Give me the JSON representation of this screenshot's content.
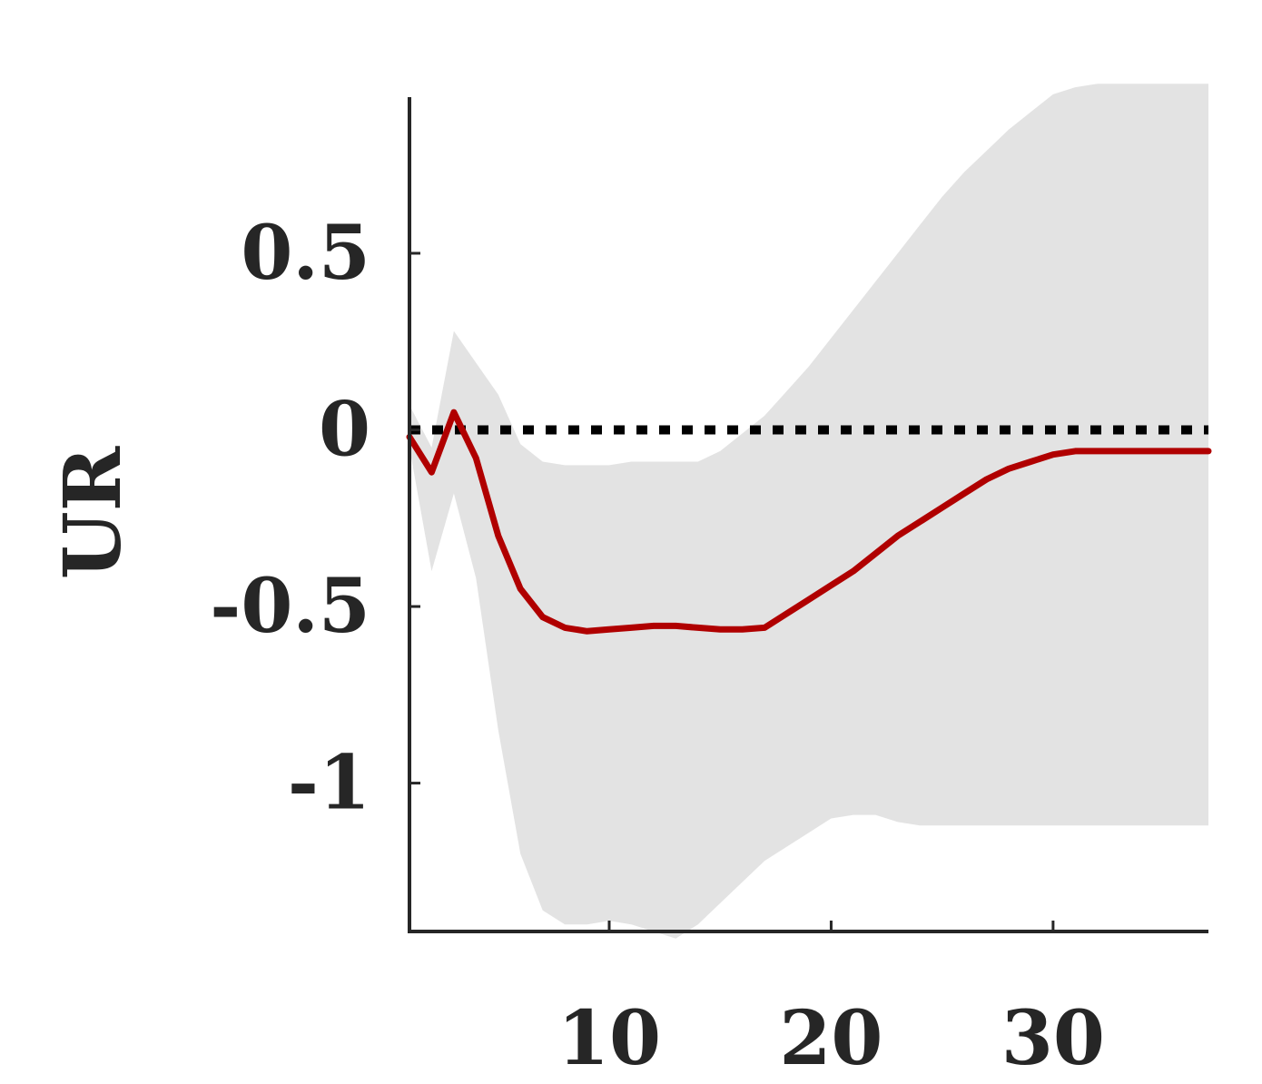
{
  "chart_data": {
    "type": "area",
    "title": "",
    "xlabel": "",
    "ylabel": "UR",
    "xlim": [
      1,
      37
    ],
    "ylim": [
      -1.42,
      0.96
    ],
    "x_ticks": [
      10,
      20,
      30
    ],
    "x_tick_labels": [
      "10",
      "20",
      "30"
    ],
    "y_ticks": [
      0.5,
      0,
      -0.5,
      -1
    ],
    "y_tick_labels": [
      "0.5",
      "0",
      "-0.5",
      "-1"
    ],
    "grid": false,
    "legend": "none",
    "x": [
      1,
      2,
      3,
      4,
      5,
      6,
      7,
      8,
      9,
      10,
      11,
      12,
      13,
      14,
      15,
      16,
      17,
      18,
      19,
      20,
      21,
      22,
      23,
      24,
      25,
      26,
      27,
      28,
      29,
      30,
      31,
      32,
      33,
      34,
      35,
      36,
      37
    ],
    "series": [
      {
        "role": "median",
        "color": "#b00000",
        "values": [
          -0.02,
          -0.12,
          0.05,
          -0.08,
          -0.3,
          -0.45,
          -0.53,
          -0.56,
          -0.57,
          -0.565,
          -0.56,
          -0.555,
          -0.555,
          -0.56,
          -0.565,
          -0.565,
          -0.56,
          -0.52,
          -0.48,
          -0.44,
          -0.4,
          -0.35,
          -0.3,
          -0.26,
          -0.22,
          -0.18,
          -0.14,
          -0.11,
          -0.09,
          -0.07,
          -0.06,
          -0.06,
          -0.06,
          -0.06,
          -0.06,
          -0.06,
          -0.06
        ]
      },
      {
        "role": "upper",
        "color": "#e3e3e3",
        "values": [
          0.07,
          -0.05,
          0.28,
          0.19,
          0.1,
          -0.04,
          -0.09,
          -0.1,
          -0.1,
          -0.1,
          -0.09,
          -0.09,
          -0.09,
          -0.09,
          -0.06,
          -0.01,
          0.04,
          0.11,
          0.18,
          0.26,
          0.34,
          0.42,
          0.5,
          0.58,
          0.66,
          0.73,
          0.79,
          0.85,
          0.9,
          0.95,
          0.97,
          0.98,
          0.98,
          0.98,
          0.98,
          0.98,
          0.98
        ]
      },
      {
        "role": "lower",
        "color": "#e3e3e3",
        "values": [
          -0.05,
          -0.4,
          -0.18,
          -0.42,
          -0.85,
          -1.2,
          -1.36,
          -1.4,
          -1.4,
          -1.39,
          -1.4,
          -1.42,
          -1.44,
          -1.4,
          -1.34,
          -1.28,
          -1.22,
          -1.18,
          -1.14,
          -1.1,
          -1.09,
          -1.09,
          -1.11,
          -1.12,
          -1.12,
          -1.12,
          -1.12,
          -1.12,
          -1.12,
          -1.12,
          -1.12,
          -1.12,
          -1.12,
          -1.12,
          -1.12,
          -1.12,
          -1.12
        ]
      }
    ],
    "reference_line": {
      "y": 0,
      "style": "dotted",
      "color": "#000000"
    }
  }
}
